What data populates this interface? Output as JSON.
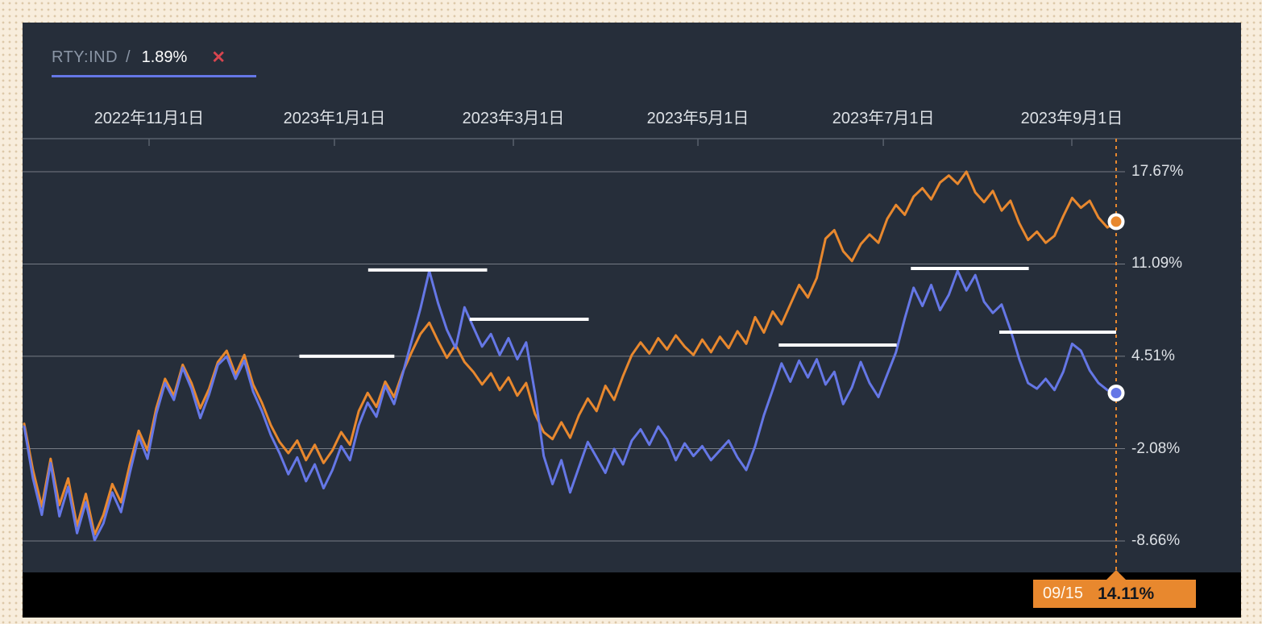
{
  "legend": {
    "symbol": "RTY:IND",
    "separator": "/",
    "value": "1.89%",
    "close_label": "✕"
  },
  "cursor_badge": {
    "date": "09/15",
    "value": "14.11%"
  },
  "colors": {
    "accent_orange": "#E8882E",
    "accent_blue": "#6577E6",
    "close_red": "#D8454F",
    "panel_bg": "#262E3A",
    "frame_bg": "#F8EDDC",
    "grid": "#7E848D",
    "axis": "#59616D",
    "label": "#DDE1E6",
    "annotation_white": "#FFFFFF",
    "black_bar": "#000000"
  },
  "chart_data": {
    "type": "line",
    "title": "",
    "xlabel": "",
    "ylabel": "",
    "ylim": [
      -8.66,
      17.67
    ],
    "grid": "horizontal",
    "legend_position": "top-left",
    "x_tick_labels": [
      {
        "label": "2022年11月1日",
        "pos": 0.1144
      },
      {
        "label": "2023年1月1日",
        "pos": 0.2841
      },
      {
        "label": "2023年3月1日",
        "pos": 0.448
      },
      {
        "label": "2023年5月1日",
        "pos": 0.617
      },
      {
        "label": "2023年7月1日",
        "pos": 0.7868
      },
      {
        "label": "2023年9月1日",
        "pos": 0.9594
      }
    ],
    "y_ticks": [
      {
        "label": "17.67%",
        "value": 17.67
      },
      {
        "label": "11.09%",
        "value": 11.09
      },
      {
        "label": "4.51%",
        "value": 4.51
      },
      {
        "label": "-2.08%",
        "value": -2.08
      },
      {
        "label": "-8.66%",
        "value": -8.66
      }
    ],
    "series": [
      {
        "name": "unlabeled-orange-series",
        "color": "#E8882E",
        "end_value": 14.11,
        "values": [
          -0.3,
          -3.6,
          -6.2,
          -2.8,
          -6.1,
          -4.2,
          -7.6,
          -5.3,
          -8.2,
          -6.8,
          -4.6,
          -5.9,
          -3.2,
          -0.8,
          -2.2,
          0.8,
          2.9,
          1.7,
          3.9,
          2.6,
          0.8,
          2.2,
          4.1,
          4.9,
          3.2,
          4.6,
          2.5,
          1.2,
          -0.4,
          -1.6,
          -2.4,
          -1.5,
          -2.9,
          -1.8,
          -3.1,
          -2.2,
          -0.9,
          -1.8,
          0.6,
          1.9,
          0.9,
          2.7,
          1.6,
          3.4,
          4.8,
          6.1,
          6.9,
          5.6,
          4.4,
          5.3,
          4.1,
          3.4,
          2.5,
          3.3,
          2.1,
          3.0,
          1.7,
          2.6,
          0.4,
          -0.9,
          -1.4,
          -0.2,
          -1.3,
          0.3,
          1.5,
          0.6,
          2.4,
          1.4,
          3.1,
          4.6,
          5.5,
          4.7,
          5.8,
          5.0,
          6.0,
          5.2,
          4.6,
          5.7,
          4.8,
          5.9,
          5.1,
          6.3,
          5.4,
          7.3,
          6.2,
          7.7,
          6.8,
          8.2,
          9.6,
          8.7,
          10.1,
          12.9,
          13.5,
          12.0,
          11.3,
          12.5,
          13.2,
          12.6,
          14.3,
          15.3,
          14.6,
          15.9,
          16.5,
          15.7,
          16.9,
          17.4,
          16.8,
          17.67,
          16.2,
          15.5,
          16.3,
          14.9,
          15.6,
          14.0,
          12.8,
          13.4,
          12.6,
          13.1,
          14.5,
          15.8,
          15.1,
          15.6,
          14.4,
          13.7,
          14.11
        ]
      },
      {
        "name": "RTY:IND",
        "color": "#6577E6",
        "end_value": 1.89,
        "values": [
          -0.5,
          -4.2,
          -6.8,
          -3.1,
          -6.9,
          -4.8,
          -8.1,
          -5.9,
          -8.6,
          -7.4,
          -5.2,
          -6.6,
          -3.8,
          -1.2,
          -2.8,
          0.4,
          2.6,
          1.4,
          3.7,
          2.2,
          0.1,
          1.8,
          3.9,
          4.5,
          2.9,
          4.2,
          2.0,
          0.6,
          -1.1,
          -2.4,
          -3.9,
          -2.7,
          -4.4,
          -3.2,
          -4.9,
          -3.6,
          -1.9,
          -2.9,
          -0.4,
          1.2,
          0.2,
          2.4,
          1.1,
          3.3,
          5.6,
          7.9,
          10.6,
          8.3,
          6.4,
          5.1,
          8.0,
          6.6,
          5.2,
          6.1,
          4.6,
          5.8,
          4.3,
          5.5,
          1.9,
          -2.6,
          -4.6,
          -2.9,
          -5.2,
          -3.4,
          -1.6,
          -2.7,
          -3.8,
          -2.1,
          -3.2,
          -1.5,
          -0.7,
          -1.8,
          -0.5,
          -1.4,
          -2.9,
          -1.7,
          -2.6,
          -1.9,
          -2.9,
          -2.2,
          -1.5,
          -2.7,
          -3.6,
          -1.9,
          0.3,
          2.1,
          4.0,
          2.7,
          4.2,
          3.0,
          4.3,
          2.5,
          3.4,
          1.1,
          2.3,
          4.1,
          2.6,
          1.6,
          3.2,
          4.8,
          7.2,
          9.4,
          8.1,
          9.6,
          7.8,
          8.9,
          10.6,
          9.2,
          10.3,
          8.4,
          7.6,
          8.2,
          6.4,
          4.3,
          2.6,
          2.2,
          2.9,
          2.1,
          3.4,
          5.4,
          4.9,
          3.5,
          2.6,
          2.1,
          1.89
        ]
      }
    ],
    "annotations": [
      {
        "x1": 0.315,
        "x2": 0.424,
        "value": 10.66
      },
      {
        "x1": 0.408,
        "x2": 0.517,
        "value": 7.15
      },
      {
        "x1": 0.252,
        "x2": 0.339,
        "value": 4.51
      },
      {
        "x1": 0.691,
        "x2": 0.799,
        "value": 5.31
      },
      {
        "x1": 0.812,
        "x2": 0.92,
        "value": 10.77
      },
      {
        "x1": 0.893,
        "x2": 1.0,
        "value": 6.23
      }
    ],
    "cursor": {
      "pos": 1.0,
      "date": "09/15",
      "value": "14.11%"
    }
  }
}
